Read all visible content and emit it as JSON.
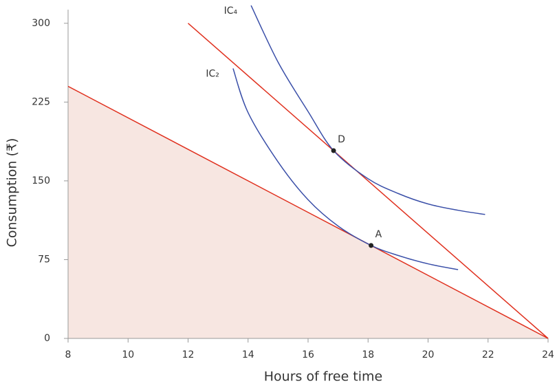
{
  "chart_data": {
    "type": "line",
    "xlabel": "Hours of free time",
    "ylabel": "Consumption (₹)",
    "xlim": [
      8,
      24
    ],
    "ylim": [
      0,
      313
    ],
    "xticks": [
      8,
      10,
      12,
      14,
      16,
      18,
      20,
      22,
      24
    ],
    "yticks": [
      0,
      75,
      150,
      225,
      300
    ],
    "series": [
      {
        "color": "#e0301e",
        "fill": "#f7e6e1",
        "x": [
          8,
          24
        ],
        "values": [
          240,
          0
        ]
      },
      {
        "color": "#e0301e",
        "x": [
          12,
          24
        ],
        "values": [
          300,
          0
        ]
      },
      {
        "name": "IC₂",
        "color": "#3a4fa8",
        "x": [
          13.5,
          14,
          15,
          16,
          17,
          18.1,
          19,
          20,
          21
        ],
        "values": [
          257,
          215,
          168,
          132,
          107,
          88.5,
          79,
          71,
          65.5
        ]
      },
      {
        "name": "IC₄",
        "color": "#3a4fa8",
        "x": [
          14.1,
          15,
          16,
          16.85,
          18,
          19,
          20,
          21,
          21.9
        ],
        "values": [
          317,
          263,
          216,
          178.75,
          152,
          138,
          128,
          122,
          118
        ]
      }
    ],
    "points": [
      {
        "label": "A",
        "x": 18.1,
        "y": 88.5
      },
      {
        "label": "D",
        "x": 16.85,
        "y": 178.75
      }
    ]
  }
}
